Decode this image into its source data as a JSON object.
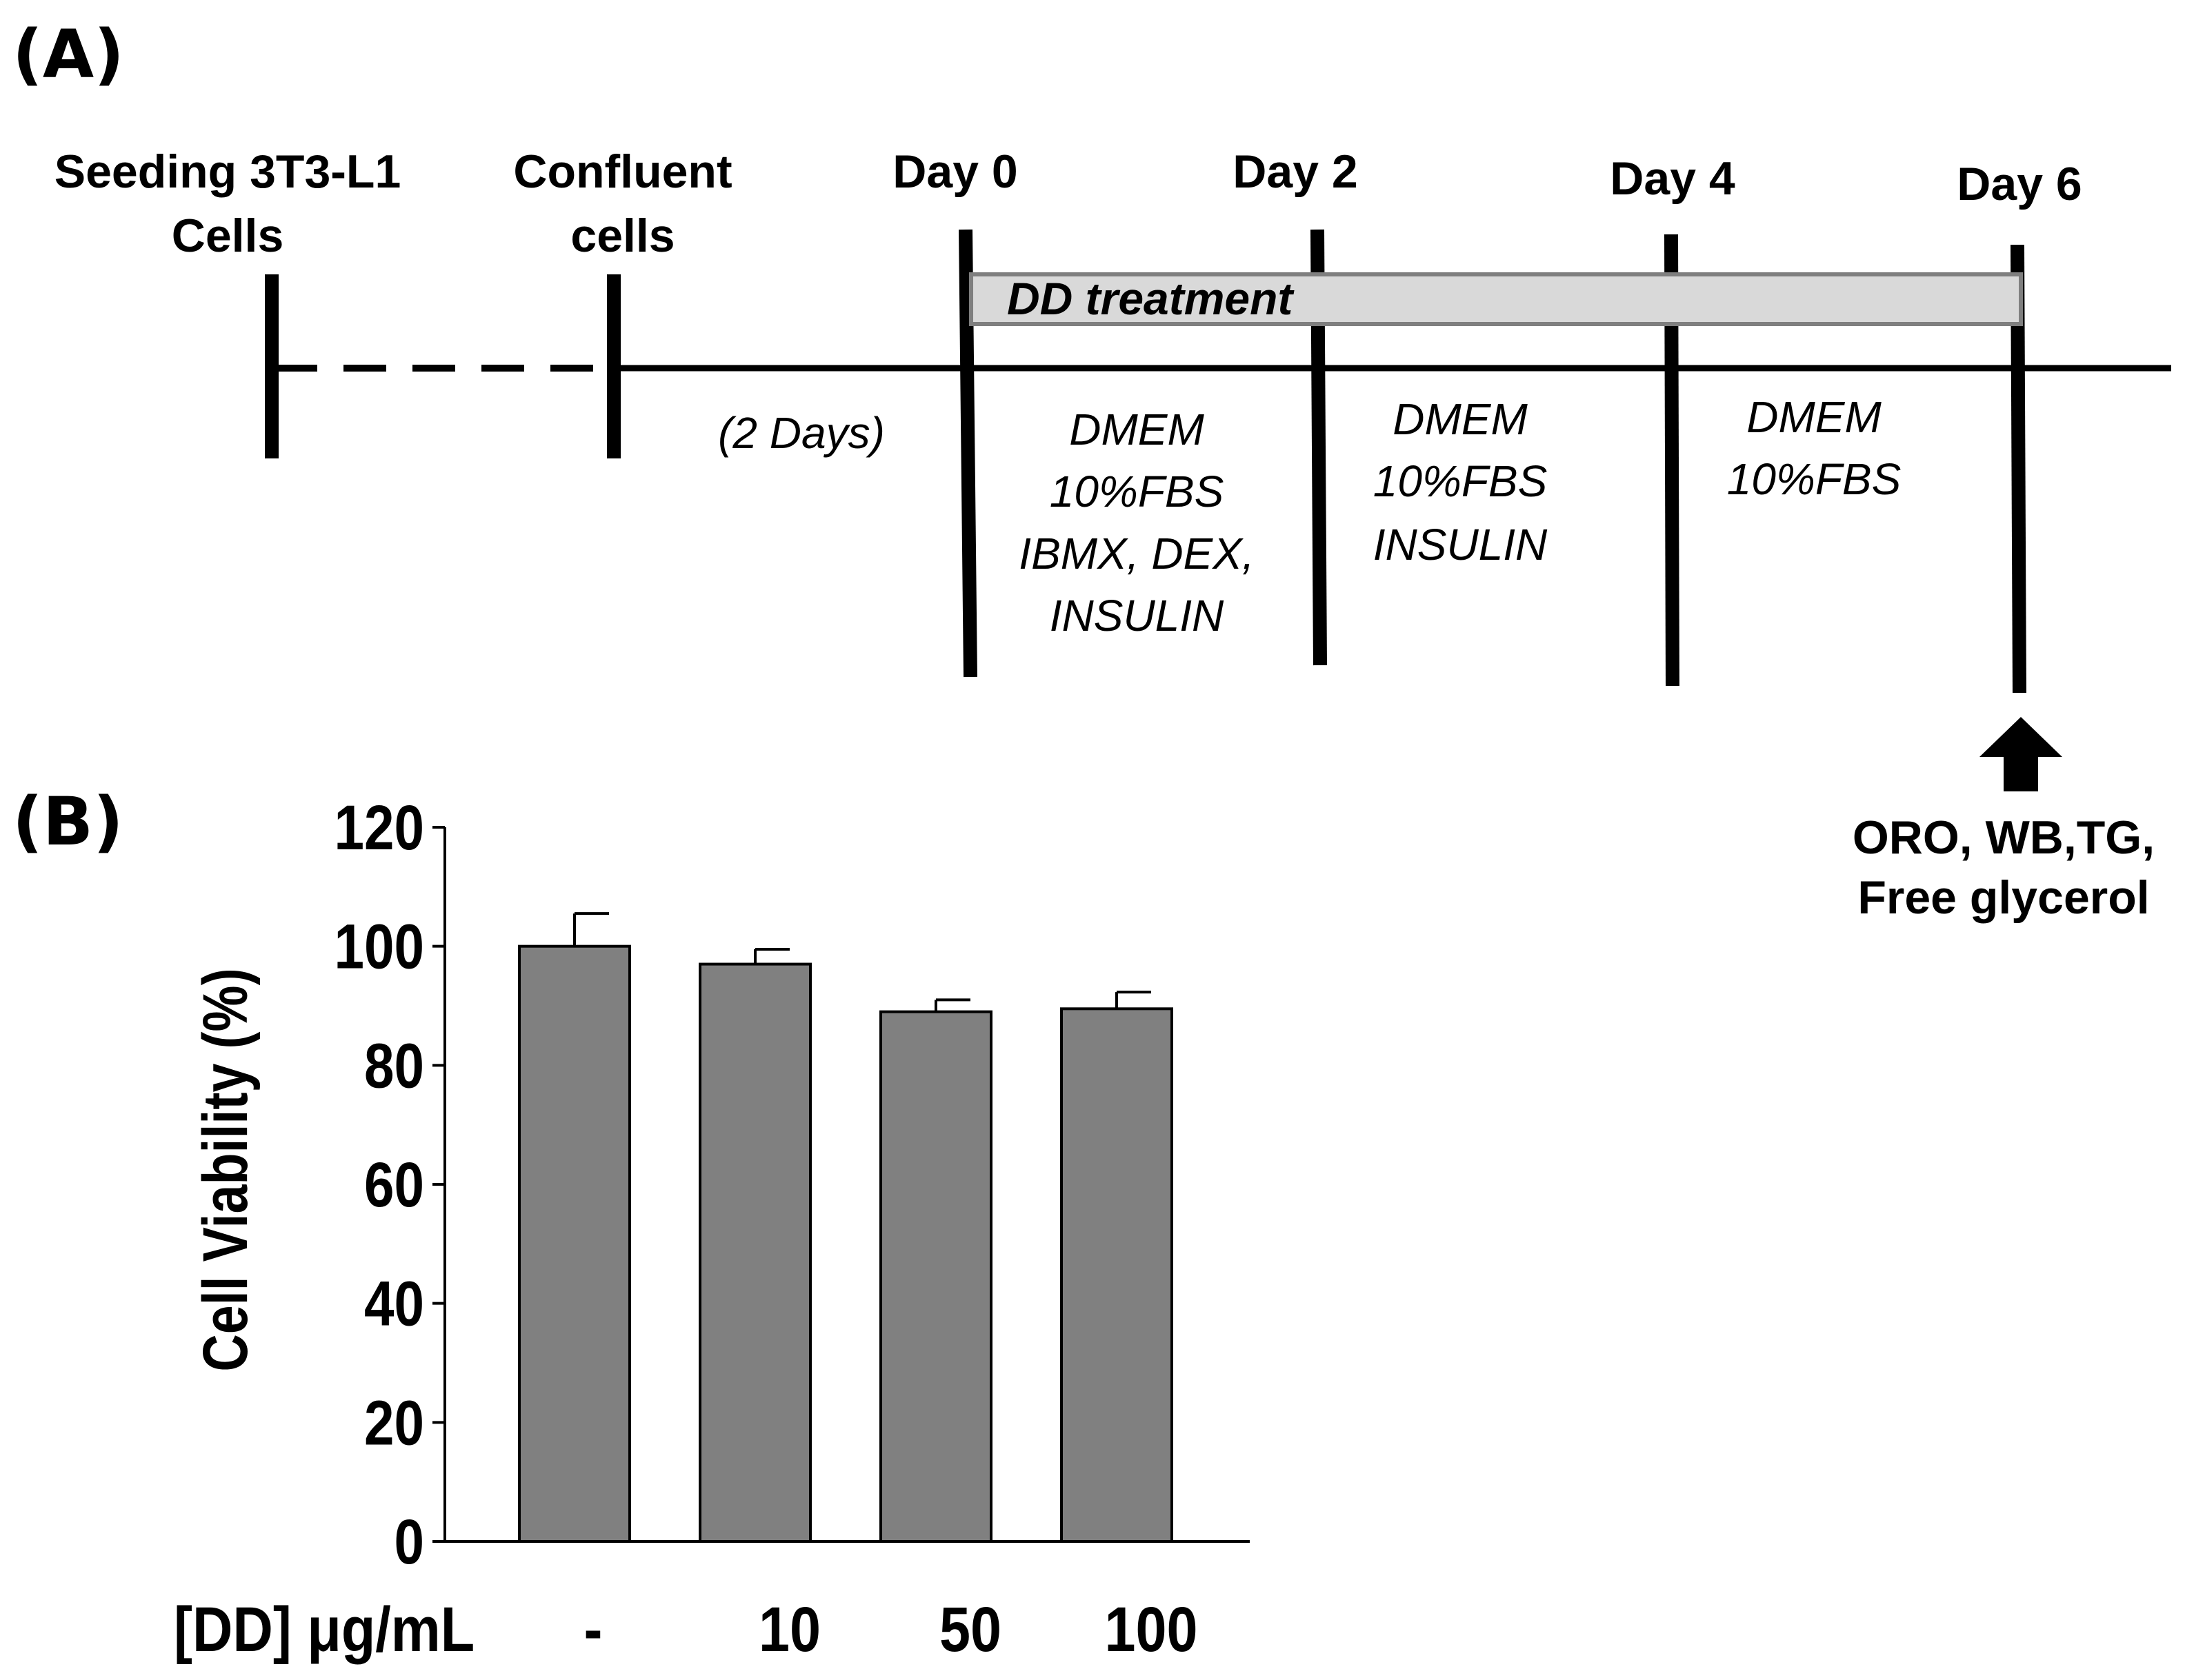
{
  "panel_a": {
    "label": "(A)",
    "stages": [
      {
        "lines": [
          "Seeding 3T3-L1",
          "Cells"
        ]
      },
      {
        "lines": [
          "Confluent",
          "cells"
        ]
      },
      {
        "lines": [
          "Day 0"
        ]
      },
      {
        "lines": [
          "Day 2"
        ]
      },
      {
        "lines": [
          "Day 4"
        ]
      },
      {
        "lines": [
          "Day 6"
        ]
      }
    ],
    "treatment_label": "DD treatment",
    "interval_label": "(2 Days)",
    "media": [
      {
        "lines": [
          "DMEM",
          "10%FBS",
          "IBMX, DEX,",
          "INSULIN"
        ]
      },
      {
        "lines": [
          "DMEM",
          "10%FBS",
          "INSULIN"
        ]
      },
      {
        "lines": [
          "DMEM",
          "10%FBS"
        ]
      }
    ],
    "analysis_lines": [
      "ORO, WB,TG,",
      "Free glycerol"
    ],
    "colors": {
      "treatment_fill": "#d9d9d9",
      "treatment_stroke": "#7f7f7f",
      "line": "#000000"
    }
  },
  "panel_b": {
    "label": "(B)"
  },
  "chart_data": {
    "type": "bar",
    "xlabel": "[DD] μg/mL",
    "ylabel": "Cell Viability (%)",
    "categories": [
      "-",
      "10",
      "50",
      "100"
    ],
    "values": [
      100,
      97,
      89,
      89.5
    ],
    "errors": [
      5.5,
      2.5,
      2,
      2.8
    ],
    "ylim": [
      0,
      120
    ],
    "yticks": [
      0,
      20,
      40,
      60,
      80,
      100,
      120
    ],
    "bar_color": "#808080",
    "grid": false
  }
}
